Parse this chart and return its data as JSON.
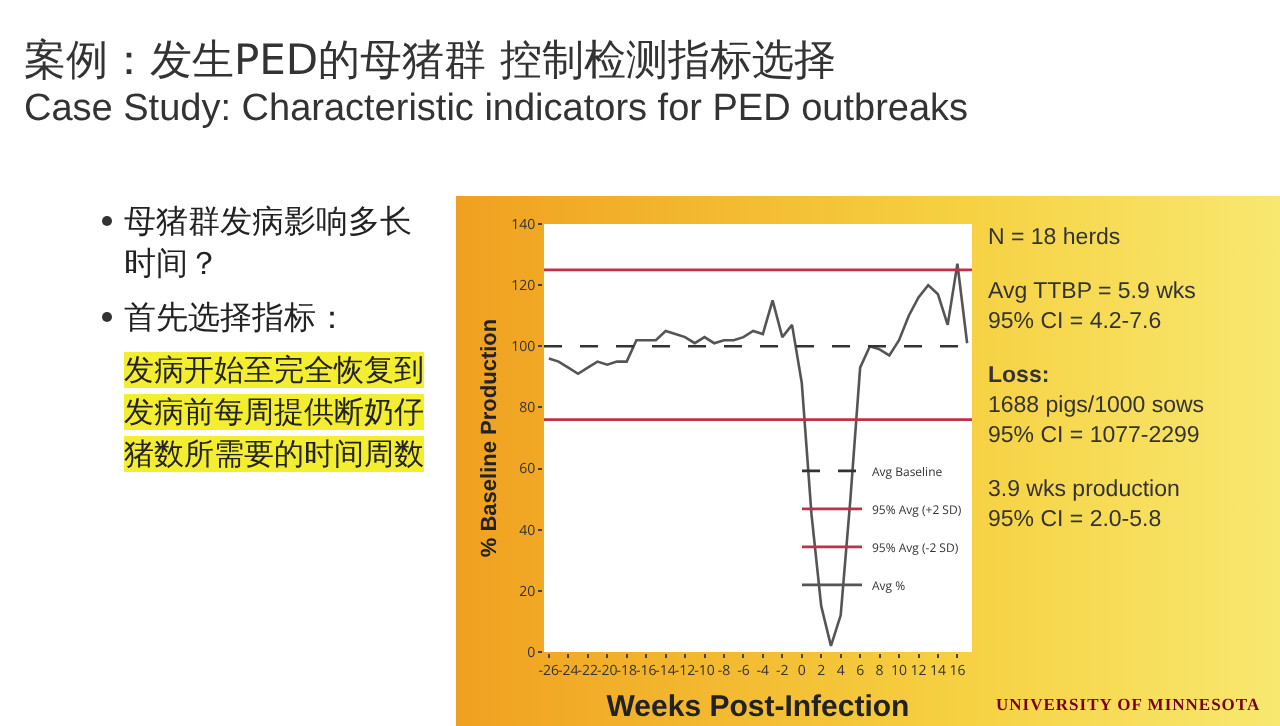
{
  "chart_data": {
    "type": "line",
    "title": "案例：发生PED的母猪群 控制检测指标选择",
    "subtitle": "Case Study: Characteristic indicators for PED outbreaks",
    "xlabel": "Weeks Post-Infection",
    "ylabel": "% Baseline Production",
    "x": [
      -26,
      -25,
      -24,
      -23,
      -22,
      -21,
      -20,
      -19,
      -18,
      -17,
      -16,
      -15,
      -14,
      -13,
      -12,
      -11,
      -10,
      -9,
      -8,
      -7,
      -6,
      -5,
      -4,
      -3,
      -2,
      -1,
      0,
      1,
      2,
      3,
      4,
      5,
      6,
      7,
      8,
      9,
      10,
      11,
      12,
      13,
      14,
      15,
      16,
      17
    ],
    "ref_lines": [
      {
        "axis": "y",
        "value": 100,
        "label": "Avg Baseline",
        "color": "#333333",
        "line_style": "dashed"
      },
      {
        "axis": "y",
        "value": 125,
        "label": "95% Avg (+2 SD)",
        "color": "#c0304a"
      },
      {
        "axis": "y",
        "value": 76,
        "label": "95% Avg (-2 SD)",
        "color": "#c0304a"
      }
    ],
    "series": [
      {
        "name": "Avg %",
        "color": "#555555",
        "values": [
          96,
          95,
          93,
          91,
          93,
          95,
          94,
          95,
          95,
          102,
          102,
          102,
          105,
          104,
          103,
          101,
          103,
          101,
          102,
          102,
          103,
          105,
          104,
          115,
          103,
          107,
          88,
          45,
          15,
          2,
          12,
          50,
          93,
          100,
          99,
          97,
          102,
          110,
          116,
          120,
          117,
          107,
          127,
          101
        ]
      }
    ],
    "xlim": [
      -26.5,
      17.5
    ],
    "xticks": [
      -26,
      -24,
      -22,
      -20,
      -18,
      -16,
      -14,
      -12,
      -10,
      -8,
      -6,
      -4,
      -2,
      0,
      2,
      4,
      6,
      8,
      10,
      12,
      14,
      16
    ],
    "ylim": [
      0,
      140
    ],
    "yticks": [
      0,
      20,
      40,
      60,
      80,
      100,
      120,
      140
    ],
    "legend": "right",
    "marker": "none",
    "line_style": "solid",
    "annotations": [
      "母猪群发病影响多长时间？",
      "首先选择指标：",
      "发病开始至完全恢复到发病前每周提供断奶仔猪数所需要的时间周数",
      "N = 18 herds",
      "Avg TTBP = 5.9 wks",
      "95% CI = 4.2-7.6",
      "Loss:",
      "1688 pigs/1000 sows",
      "95% CI = 1077-2299",
      "3.9 wks production",
      "95% CI = 2.0-5.8",
      "UNIVERSITY OF MINNESOTA"
    ]
  }
}
